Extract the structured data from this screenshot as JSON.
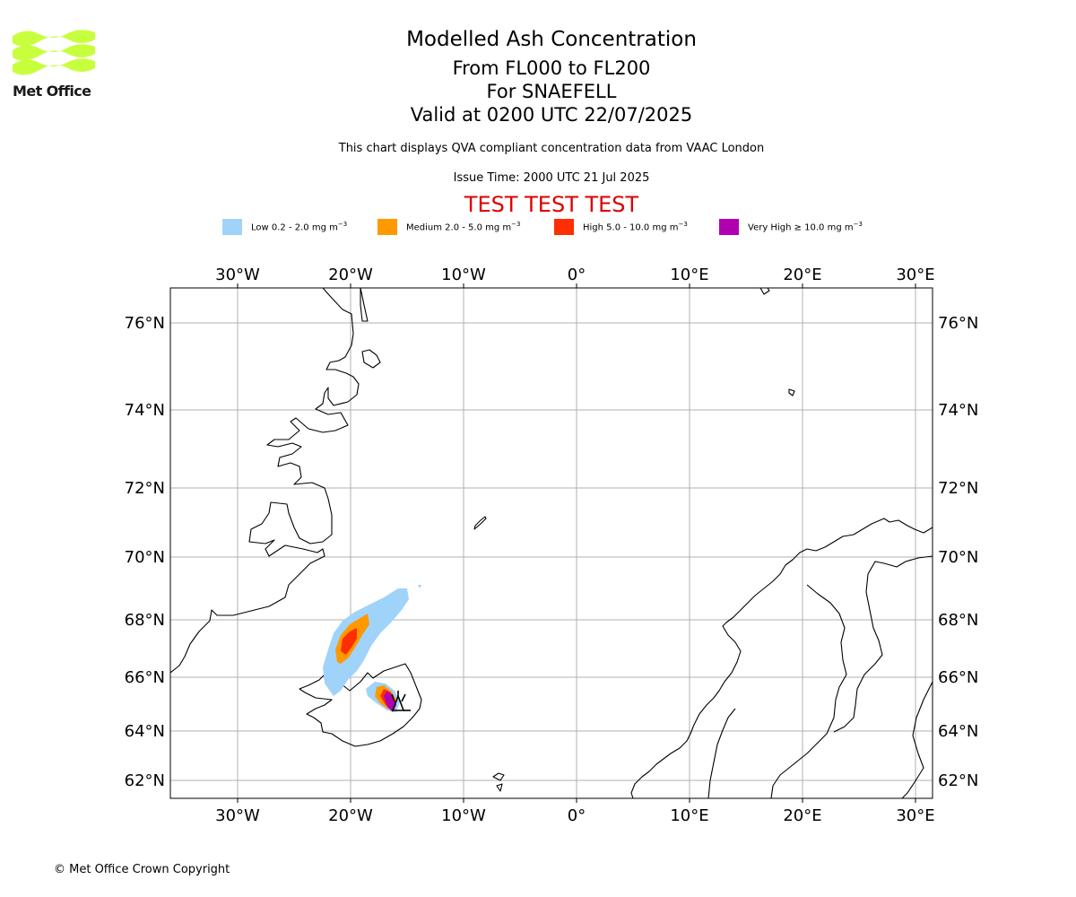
{
  "logo": {
    "text": "Met Office",
    "color": "#c8ff3c"
  },
  "title": {
    "main": "Modelled Ash Concentration",
    "level": "From FL000 to FL200",
    "volcano": "For SNAEFELL",
    "valid": "Valid at 0200 UTC 22/07/2025",
    "note": "This chart displays QVA compliant concentration data from VAAC London",
    "issue": "Issue Time: 2000 UTC 21 Jul 2025",
    "test": "TEST TEST TEST"
  },
  "legend": [
    {
      "name": "Low 0.2 - 2.0 mg m",
      "color": "#a0d3fa"
    },
    {
      "name": "Medium 2.0 - 5.0 mg m",
      "color": "#ff9900"
    },
    {
      "name": "High 5.0 - 10.0 mg m",
      "color": "#ff2e00"
    },
    {
      "name": "Very High ≥ 10.0 mg m",
      "color": "#b000b0"
    }
  ],
  "legend_unit_exp": "−3",
  "map": {
    "lon_ticks": [
      "30°W",
      "20°W",
      "10°W",
      "0°",
      "10°E",
      "20°E",
      "30°E"
    ],
    "lat_ticks": [
      "76°N",
      "74°N",
      "72°N",
      "70°N",
      "68°N",
      "66°N",
      "64°N",
      "62°N"
    ]
  },
  "copyright": "© Met Office Crown Copyright"
}
